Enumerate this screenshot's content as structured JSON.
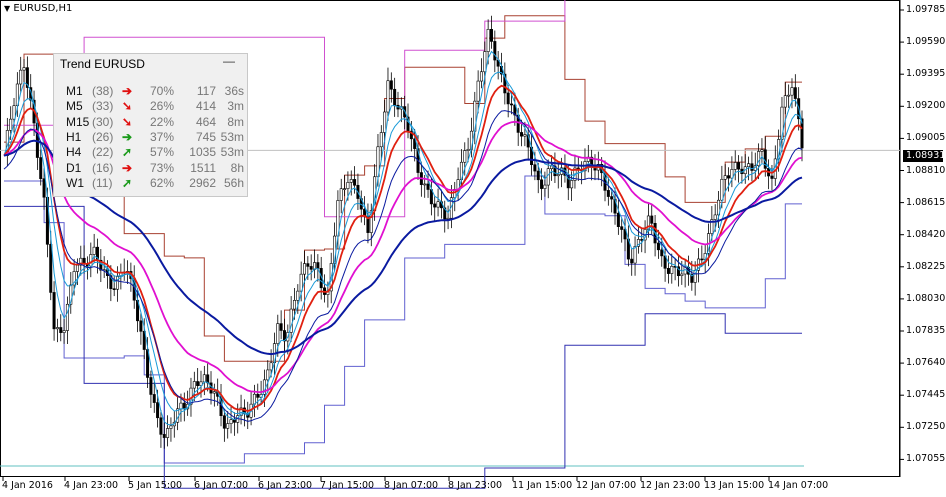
{
  "window": {
    "title": "EURUSD,H1"
  },
  "price_axis": {
    "labels": [
      "1.09785",
      "1.09590",
      "1.09395",
      "1.09200",
      "1.09005",
      "1.08810",
      "1.08615",
      "1.08420",
      "1.08225",
      "1.08030",
      "1.07835",
      "1.07640",
      "1.07445",
      "1.07250",
      "1.07055"
    ],
    "current_price": "1.08931"
  },
  "time_axis": {
    "labels": [
      "4 Jan 2016",
      "4 Jan 23:00",
      "5 Jan 15:00",
      "6 Jan 07:00",
      "6 Jan 23:00",
      "7 Jan 15:00",
      "8 Jan 07:00",
      "8 Jan 23:00",
      "11 Jan 15:00",
      "12 Jan 07:00",
      "12 Jan 23:00",
      "13 Jan 15:00",
      "14 Jan 07:00"
    ]
  },
  "trend_panel": {
    "title": "Trend EURUSD",
    "minimize_label": "—",
    "rows": [
      {
        "tf": "M1",
        "count": "(38)",
        "arrow": "➔",
        "dir": "down",
        "pct": "70%",
        "value": "117",
        "time": "36s"
      },
      {
        "tf": "M5",
        "count": "(33)",
        "arrow": "➘",
        "dir": "down",
        "pct": "26%",
        "value": "414",
        "time": "3m"
      },
      {
        "tf": "M15",
        "count": "(30)",
        "arrow": "➘",
        "dir": "down",
        "pct": "22%",
        "value": "464",
        "time": "8m"
      },
      {
        "tf": "H1",
        "count": "(26)",
        "arrow": "➔",
        "dir": "up",
        "pct": "37%",
        "value": "745",
        "time": "53m"
      },
      {
        "tf": "H4",
        "count": "(22)",
        "arrow": "➚",
        "dir": "up",
        "pct": "57%",
        "value": "1035",
        "time": "53m"
      },
      {
        "tf": "D1",
        "count": "(16)",
        "arrow": "➔",
        "dir": "down",
        "pct": "73%",
        "value": "1511",
        "time": "8h"
      },
      {
        "tf": "W1",
        "count": "(11)",
        "arrow": "➚",
        "dir": "up",
        "pct": "62%",
        "value": "2962",
        "time": "56h"
      }
    ],
    "colors": {
      "up": "#1a9a1a",
      "down": "#e01010"
    }
  },
  "colors": {
    "candle": "#000000",
    "ema_fast": "#e02010",
    "ema_slow": "#e010d0",
    "ma_dark": "#0a1aa0",
    "ma_light": "#1a9ad8",
    "channel_upper": "#a84030",
    "channel_upper2": "#d050d0",
    "channel_lower": "#6060d0",
    "base_line": "#60c0c0",
    "price_line": "#c0c0c0"
  },
  "chart_data": {
    "type": "candlestick",
    "symbol": "EURUSD",
    "timeframe": "H1",
    "ylim": [
      1.07,
      1.0982
    ],
    "close_series": [
      1.089,
      1.092,
      1.0945,
      1.091,
      1.086,
      1.078,
      1.079,
      1.083,
      1.0825,
      1.083,
      1.082,
      1.0815,
      1.0825,
      1.08,
      1.077,
      1.074,
      1.072,
      1.0735,
      1.0745,
      1.076,
      1.0755,
      1.0745,
      1.073,
      1.074,
      1.0735,
      1.0745,
      1.076,
      1.079,
      1.078,
      1.081,
      1.083,
      1.0825,
      1.08,
      1.086,
      1.088,
      1.087,
      1.084,
      1.089,
      1.0935,
      1.092,
      1.0905,
      1.088,
      1.087,
      1.086,
      1.085,
      1.088,
      1.09,
      1.0935,
      1.096,
      1.094,
      1.0925,
      1.0905,
      1.089,
      1.087,
      1.0885,
      1.088,
      1.087,
      1.0885,
      1.089,
      1.088,
      1.086,
      1.085,
      1.083,
      1.084,
      1.085,
      1.083,
      1.0825,
      1.082,
      1.0815,
      1.083,
      1.085,
      1.087,
      1.088,
      1.0885,
      1.0885,
      1.089,
      1.087,
      1.092,
      1.0935,
      1.0895
    ]
  }
}
